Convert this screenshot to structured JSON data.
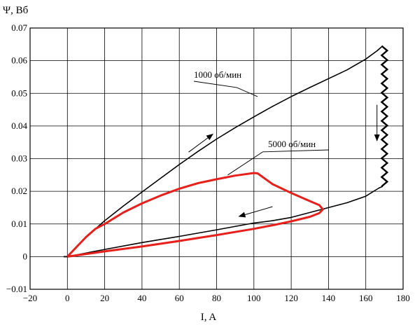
{
  "chart_data": {
    "type": "line",
    "title": "",
    "xlabel": "I, A",
    "ylabel": "Ψ, Вб",
    "xlim": [
      -20,
      180
    ],
    "ylim": [
      -0.01,
      0.07
    ],
    "grid": true,
    "x_ticks": [
      -20,
      0,
      20,
      40,
      60,
      80,
      100,
      120,
      140,
      160,
      180
    ],
    "y_ticks": [
      -0.01,
      0,
      0.01,
      0.02,
      0.03,
      0.04,
      0.05,
      0.06,
      0.07
    ],
    "x_tick_labels": [
      "−20",
      "0",
      "20",
      "40",
      "60",
      "80",
      "100",
      "120",
      "140",
      "160",
      "180"
    ],
    "y_tick_labels": [
      "−0.01",
      "0",
      "0.01",
      "0.02",
      "0.03",
      "0.04",
      "0.05",
      "0.06",
      "0.07"
    ],
    "series": [
      {
        "name": "1000 об/мин",
        "color": "#000000",
        "x": [
          -2,
          0,
          5,
          10,
          15,
          20,
          30,
          40,
          50,
          60,
          70,
          80,
          90,
          100,
          110,
          120,
          130,
          140,
          150,
          160,
          166,
          169
        ],
        "y": [
          0.0,
          0.0,
          0.003,
          0.006,
          0.0085,
          0.011,
          0.0155,
          0.0198,
          0.024,
          0.0282,
          0.0322,
          0.036,
          0.0395,
          0.0428,
          0.046,
          0.049,
          0.0518,
          0.0545,
          0.0572,
          0.0605,
          0.063,
          0.0645
        ],
        "return_x": [
          169,
          167,
          160,
          150,
          140,
          130,
          120,
          110,
          100,
          80,
          60,
          40,
          20,
          0,
          -2
        ],
        "return_y": [
          0.0215,
          0.021,
          0.0185,
          0.0165,
          0.015,
          0.0135,
          0.012,
          0.011,
          0.0103,
          0.0082,
          0.0062,
          0.0043,
          0.0022,
          0.0,
          0.0
        ],
        "zigzag": {
          "x_center": 170,
          "x_amplitude": 1.5,
          "y_top": 0.0645,
          "y_bottom": 0.0215,
          "steps": 30
        }
      },
      {
        "name": "5000 об/мин",
        "color": "#e8201c",
        "x": [
          0,
          5,
          10,
          15,
          20,
          30,
          40,
          50,
          60,
          70,
          80,
          90,
          100,
          102,
          110,
          120,
          130,
          135,
          137,
          135,
          130,
          120,
          110,
          100,
          80,
          60,
          40,
          20,
          0
        ],
        "y": [
          0.0,
          0.003,
          0.006,
          0.0085,
          0.01,
          0.0135,
          0.0163,
          0.0187,
          0.0208,
          0.0225,
          0.0237,
          0.0248,
          0.0256,
          0.0255,
          0.0222,
          0.0195,
          0.017,
          0.0158,
          0.0145,
          0.0133,
          0.0122,
          0.0108,
          0.0096,
          0.0085,
          0.0066,
          0.0048,
          0.0031,
          0.0016,
          0.0
        ]
      }
    ],
    "annotations": [
      {
        "text": "1000 об/мин",
        "anchor_x": 102,
        "anchor_y": 0.049
      },
      {
        "text": "5000 об/мин",
        "anchor_x": 86,
        "anchor_y": 0.025
      }
    ],
    "arrows": [
      {
        "from": [
          65,
          0.032
        ],
        "to": [
          78,
          0.0375
        ],
        "meaning": "rising branch direction"
      },
      {
        "from": [
          166,
          0.0465
        ],
        "to": [
          166,
          0.0355
        ],
        "meaning": "descending direction"
      },
      {
        "from": [
          110,
          0.0153
        ],
        "to": [
          92,
          0.0123
        ],
        "meaning": "return direction"
      }
    ]
  }
}
